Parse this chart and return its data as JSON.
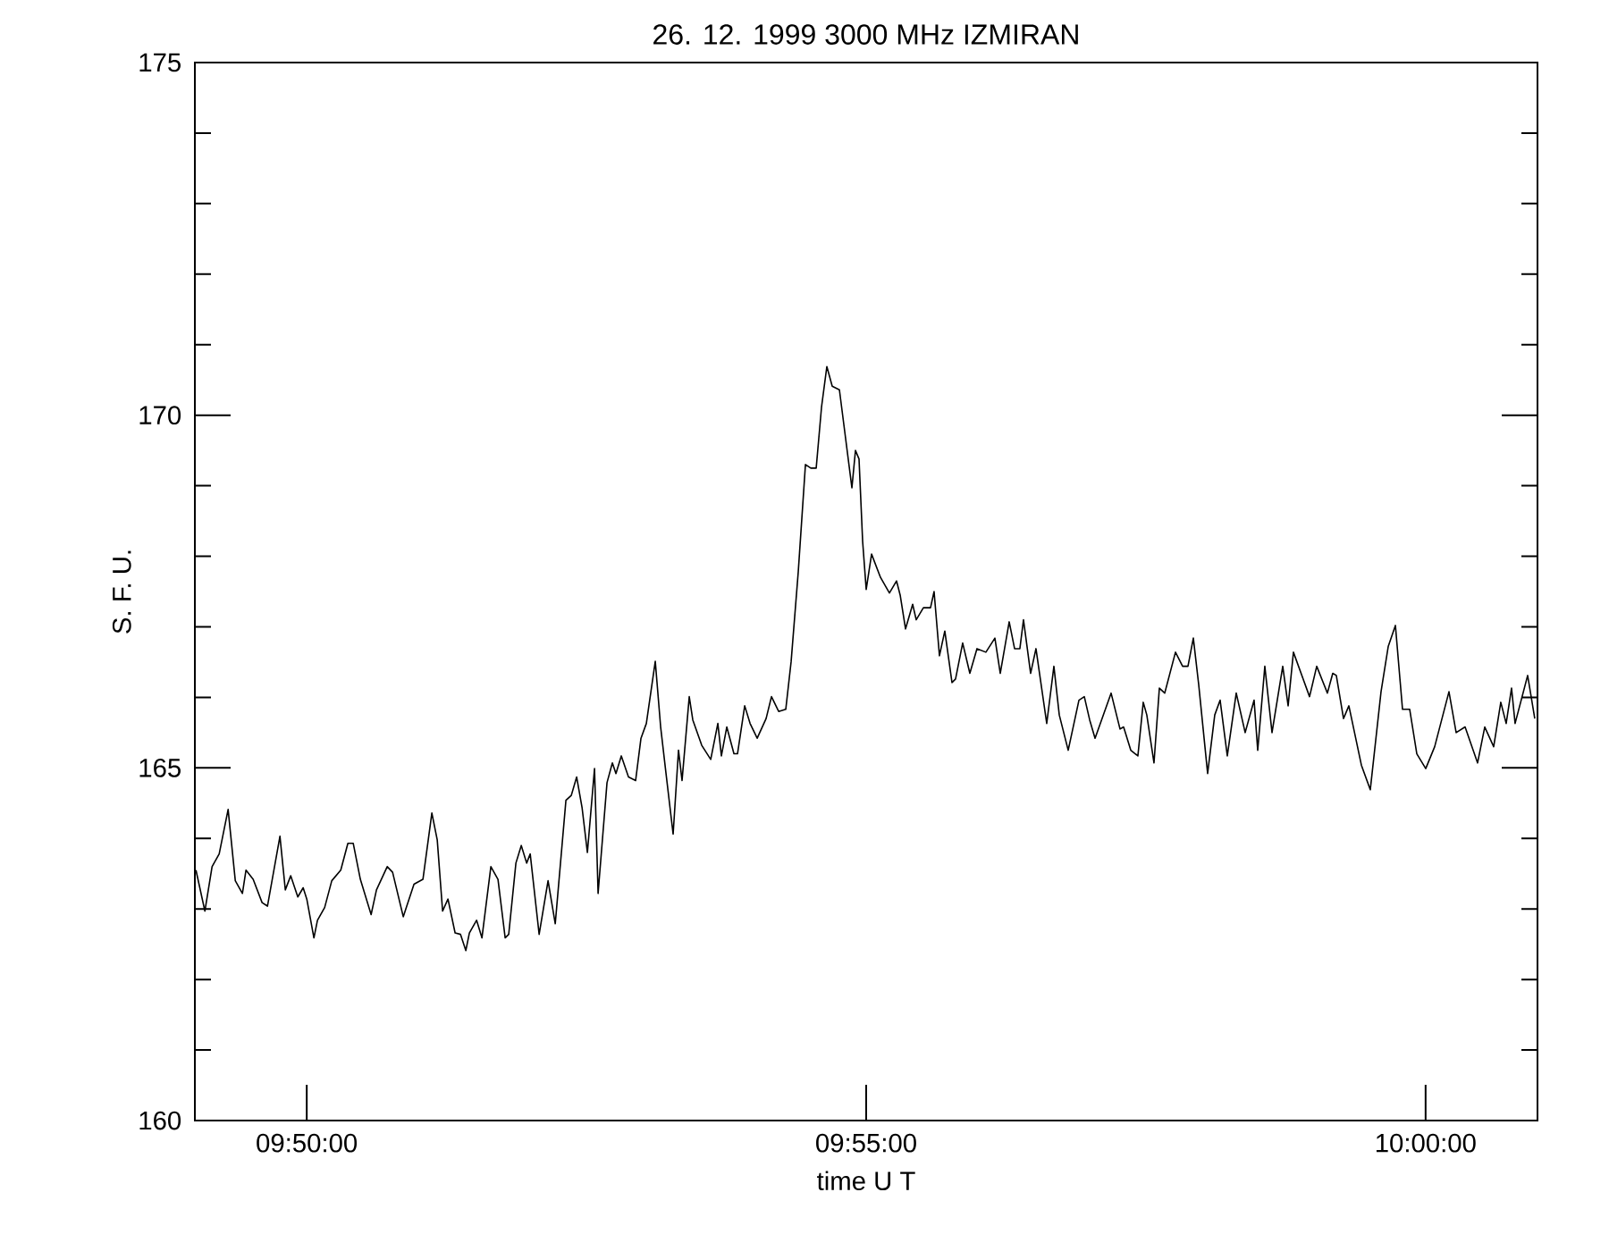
{
  "chart_data": {
    "type": "line",
    "title": "26.  12.  1999     3000 MHz    IZMIRAN",
    "xlabel": "time  U T",
    "ylabel": "S. F. U.",
    "xlim": [
      9.816667,
      10.016667
    ],
    "xticks": [
      {
        "value": 9.833333,
        "label": "09:50:00"
      },
      {
        "value": 9.916667,
        "label": "09:55:00"
      },
      {
        "value": 10.0,
        "label": "10:00:00"
      }
    ],
    "ylim": [
      160,
      175
    ],
    "yticks": [
      160,
      165,
      170,
      175
    ],
    "series": [
      {
        "color": "#000000",
        "x": [
          9.81683,
          9.81816,
          9.81923,
          9.82029,
          9.82162,
          9.82269,
          9.82375,
          9.82428,
          9.82535,
          9.82668,
          9.82748,
          9.82934,
          9.83014,
          9.83094,
          9.832,
          9.8328,
          9.83334,
          9.8344,
          9.83493,
          9.836,
          9.83706,
          9.8384,
          9.83946,
          9.84026,
          9.84132,
          9.84292,
          9.84372,
          9.84532,
          9.84612,
          9.84771,
          9.84931,
          9.85064,
          9.85197,
          9.85277,
          9.85357,
          9.85437,
          9.85543,
          9.85623,
          9.85703,
          9.85756,
          9.85863,
          9.85943,
          9.86076,
          9.86182,
          9.86289,
          9.86342,
          9.86449,
          9.86529,
          9.86609,
          9.86662,
          9.86795,
          9.86928,
          9.87035,
          9.87194,
          9.87274,
          9.87354,
          9.87434,
          9.87514,
          9.8762,
          9.87673,
          9.87806,
          9.87886,
          9.87939,
          9.88019,
          9.88126,
          9.88232,
          9.88312,
          9.88392,
          9.88525,
          9.88605,
          9.88685,
          9.88791,
          9.88871,
          9.88924,
          9.89031,
          9.89084,
          9.89217,
          9.89351,
          9.89457,
          9.8951,
          9.8959,
          9.89697,
          9.8975,
          9.89857,
          9.89937,
          9.90043,
          9.90176,
          9.90256,
          9.90363,
          9.90469,
          9.90549,
          9.90655,
          9.90762,
          9.90842,
          9.90922,
          9.91001,
          9.91081,
          9.91161,
          9.91268,
          9.91454,
          9.91507,
          9.9156,
          9.91614,
          9.91667,
          9.91747,
          9.9188,
          9.92013,
          9.92119,
          9.92173,
          9.92253,
          9.92359,
          9.92412,
          9.92519,
          9.92625,
          9.92678,
          9.92758,
          9.92838,
          9.92945,
          9.92998,
          9.93104,
          9.93211,
          9.93317,
          9.9345,
          9.93584,
          9.93664,
          9.93797,
          9.93877,
          9.93956,
          9.9401,
          9.94116,
          9.94196,
          9.94356,
          9.94463,
          9.94543,
          9.94676,
          9.94836,
          9.94916,
          9.94996,
          9.95076,
          9.95315,
          9.95448,
          9.95501,
          9.95608,
          9.95714,
          9.95794,
          9.95847,
          9.95954,
          9.96034,
          9.96114,
          9.96274,
          9.9638,
          9.9646,
          9.9654,
          9.9662,
          9.96753,
          9.96859,
          9.96939,
          9.97046,
          9.97179,
          9.97312,
          9.97445,
          9.97499,
          9.97605,
          9.97712,
          9.97872,
          9.97952,
          9.98031,
          9.98271,
          9.98378,
          9.98537,
          9.98617,
          9.9867,
          9.98777,
          9.98857,
          9.99043,
          9.99176,
          9.99336,
          9.99443,
          9.9955,
          9.99656,
          9.99763,
          9.99869,
          10.00002,
          10.00135,
          10.00348,
          10.00455,
          10.00588,
          10.00774,
          10.00881,
          10.01014,
          10.0112,
          10.012,
          10.0128,
          10.01333,
          10.0152,
          10.01626
        ],
        "values": [
          163.55,
          162.97,
          163.6,
          163.78,
          164.41,
          163.4,
          163.22,
          163.55,
          163.42,
          163.09,
          163.04,
          164.03,
          163.27,
          163.47,
          163.17,
          163.3,
          163.14,
          162.59,
          162.84,
          163.02,
          163.4,
          163.55,
          163.93,
          163.93,
          163.42,
          162.92,
          163.27,
          163.6,
          163.52,
          162.89,
          163.35,
          163.42,
          164.36,
          163.98,
          162.97,
          163.14,
          162.66,
          162.64,
          162.41,
          162.66,
          162.84,
          162.59,
          163.6,
          163.42,
          162.59,
          162.64,
          163.65,
          163.9,
          163.65,
          163.78,
          162.64,
          163.4,
          162.79,
          164.54,
          164.61,
          164.87,
          164.44,
          163.8,
          164.99,
          163.22,
          164.79,
          165.07,
          164.92,
          165.17,
          164.87,
          164.82,
          165.42,
          165.63,
          166.51,
          165.58,
          164.92,
          164.06,
          165.25,
          164.82,
          166.01,
          165.68,
          165.32,
          165.12,
          165.63,
          165.17,
          165.58,
          165.2,
          165.2,
          165.88,
          165.63,
          165.42,
          165.7,
          166.01,
          165.8,
          165.83,
          166.51,
          167.78,
          169.3,
          169.25,
          169.25,
          170.11,
          170.69,
          170.41,
          170.36,
          168.97,
          169.5,
          169.38,
          168.21,
          167.53,
          168.03,
          167.7,
          167.48,
          167.65,
          167.45,
          166.97,
          167.32,
          167.1,
          167.27,
          167.27,
          167.5,
          166.59,
          166.94,
          166.21,
          166.26,
          166.77,
          166.34,
          166.69,
          166.64,
          166.84,
          166.34,
          167.07,
          166.69,
          166.69,
          167.1,
          166.34,
          166.69,
          165.63,
          166.44,
          165.75,
          165.25,
          165.96,
          166.01,
          165.68,
          165.42,
          166.06,
          165.55,
          165.58,
          165.25,
          165.17,
          165.93,
          165.75,
          165.07,
          166.13,
          166.06,
          166.64,
          166.44,
          166.44,
          166.84,
          166.18,
          164.92,
          165.75,
          165.96,
          165.17,
          166.06,
          165.5,
          165.96,
          165.25,
          166.44,
          165.5,
          166.44,
          165.88,
          166.64,
          166.01,
          166.44,
          166.06,
          166.34,
          166.31,
          165.7,
          165.88,
          165.04,
          164.69,
          166.08,
          166.72,
          167.02,
          165.83,
          165.83,
          165.2,
          164.99,
          165.3,
          166.08,
          165.5,
          165.58,
          165.07,
          165.58,
          165.3,
          165.93,
          165.63,
          166.13,
          165.63,
          166.31,
          165.7
        ]
      }
    ],
    "marker": "none",
    "line_style": "solid"
  }
}
